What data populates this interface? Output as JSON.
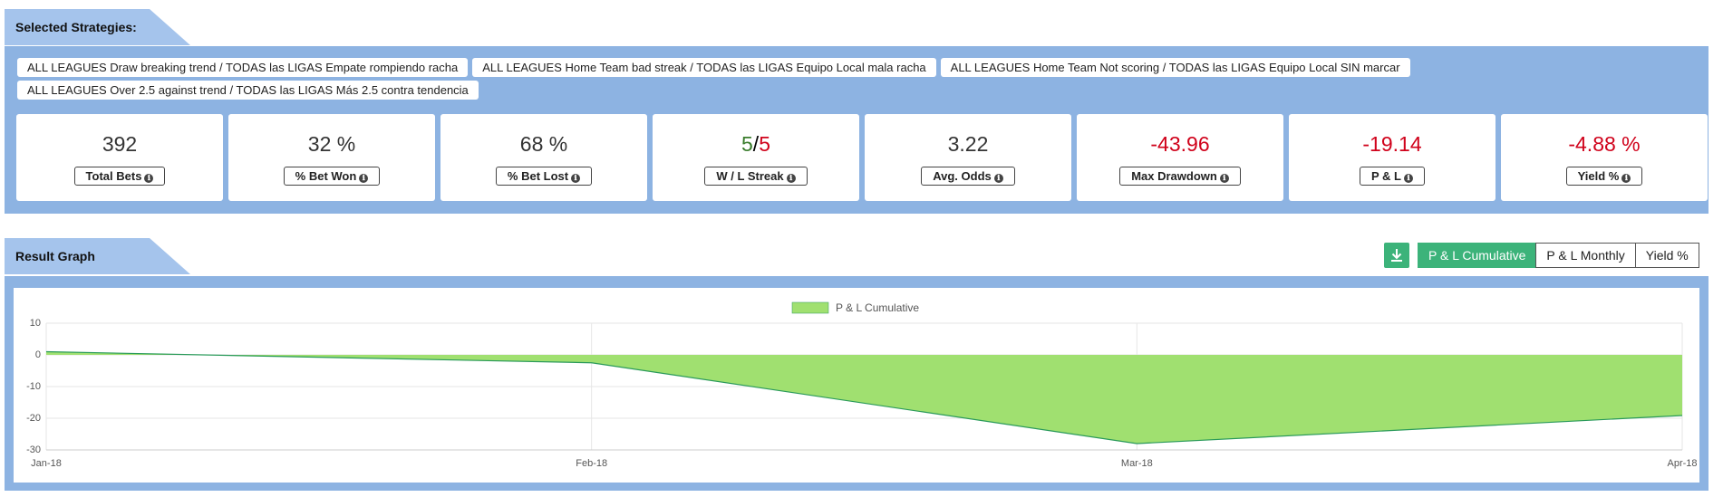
{
  "header": {
    "title": "Selected Strategies:"
  },
  "strategies": [
    "ALL LEAGUES Draw breaking trend / TODAS las LIGAS Empate rompiendo racha",
    "ALL LEAGUES Home Team bad streak / TODAS las LIGAS Equipo Local mala racha",
    "ALL LEAGUES Home Team Not scoring / TODAS las LIGAS Equipo Local SIN marcar",
    "ALL LEAGUES Over 2.5 against trend / TODAS las LIGAS Más 2.5 contra tendencia"
  ],
  "stats": [
    {
      "value": "392",
      "label": "Total Bets",
      "color": "#333333"
    },
    {
      "value": "32 %",
      "label": "% Bet Won",
      "color": "#333333"
    },
    {
      "value": "68 %",
      "label": "% Bet Lost",
      "color": "#333333"
    },
    {
      "wins": 5,
      "separator": "/",
      "losses": 5,
      "label": "W / L Streak",
      "win_color": "#3a7d2c",
      "loss_color": "#d0021b"
    },
    {
      "value": "3.22",
      "label": "Avg. Odds",
      "color": "#333333"
    },
    {
      "value": "-43.96",
      "label": "Max Drawdown",
      "color": "#d0021b"
    },
    {
      "value": "-19.14",
      "label": "P & L",
      "color": "#d0021b"
    },
    {
      "value": "-4.88 %",
      "label": "Yield %",
      "color": "#d0021b"
    }
  ],
  "graph": {
    "title": "Result Graph",
    "buttons": [
      {
        "label": "P & L Cumulative",
        "active": true
      },
      {
        "label": "P & L Monthly",
        "active": false
      },
      {
        "label": "Yield %",
        "active": false
      }
    ]
  },
  "chart_data": {
    "type": "area",
    "series": [
      {
        "name": "P & L Cumulative",
        "color": "#a0e070",
        "line_color": "#2a9a5a",
        "values": [
          1,
          -2.5,
          -28,
          -19.14
        ]
      }
    ],
    "categories": [
      "Jan-18",
      "Feb-18",
      "Mar-18",
      "Apr-18"
    ],
    "ylim": [
      -30,
      10
    ],
    "yticks": [
      10,
      0,
      -10,
      -20,
      -30
    ],
    "grid": true
  }
}
